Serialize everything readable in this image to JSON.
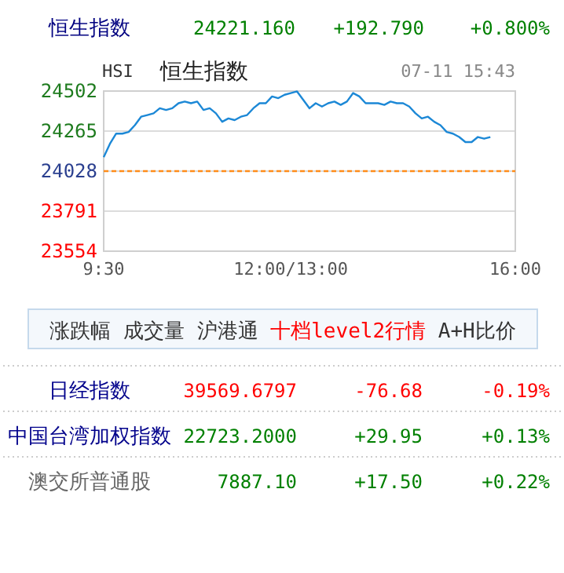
{
  "chart_data": [
    {
      "type": "other",
      "annotations": [
        "恒生指数",
        "24221.160",
        "+192.790",
        "+0.800%"
      ]
    },
    {
      "type": "line",
      "title": "恒生指数",
      "subtitle": "HSI",
      "annotations": [
        "07-11 15:43"
      ],
      "categories": [
        "9:30",
        null,
        null,
        null,
        null,
        null,
        null,
        null,
        null,
        null,
        null,
        null,
        null,
        null,
        null,
        null,
        null,
        null,
        null,
        null,
        null,
        null,
        null,
        null,
        null,
        null,
        null,
        null,
        null,
        null,
        "12:00/13:00",
        null,
        null,
        null,
        null,
        null,
        null,
        null,
        null,
        null,
        null,
        null,
        null,
        null,
        null,
        null,
        null,
        null,
        null,
        null,
        null,
        null,
        null,
        null,
        null,
        null,
        null,
        null,
        null,
        null,
        null,
        null,
        null,
        null,
        null,
        null,
        "16:00"
      ],
      "series": [
        {
          "color": "#1c88d6",
          "values": [
            24110,
            24190,
            24250,
            24250,
            24260,
            24300,
            24350,
            24360,
            24370,
            24400,
            24390,
            24400,
            24430,
            24440,
            24430,
            24440,
            24390,
            24400,
            24370,
            24320,
            24340,
            24330,
            24350,
            24360,
            24400,
            24430,
            24430,
            24470,
            24460,
            24480,
            24490,
            24500,
            24450,
            24400,
            24430,
            24410,
            24430,
            24440,
            24420,
            24440,
            24490,
            24470,
            24430,
            24430,
            24430,
            24420,
            24440,
            24430,
            24430,
            24410,
            24370,
            24340,
            24350,
            24320,
            24300,
            24260,
            24250,
            24230,
            24200,
            24200,
            24230,
            24220,
            24230,
            null,
            null,
            null,
            null
          ]
        }
      ],
      "ylim": [
        23554,
        24502
      ],
      "yticks": [
        23554,
        23791,
        24028,
        24265,
        24502
      ],
      "grid": "y",
      "ref_lines": [
        {
          "axis": "y",
          "value": 24028,
          "color": "#ff8c1a",
          "line_style": "dashed"
        }
      ]
    },
    {
      "type": "other",
      "annotations": [
        "涨跌幅",
        "成交量",
        "沪港通",
        "十档level2行情",
        "A+H比价",
        "日经指数",
        "39569.6797",
        "-76.68",
        "-0.19%",
        "中国台湾加权指数",
        "22723.2000",
        "+29.95",
        "+0.13%",
        "澳交所普通股",
        "7887.10",
        "+17.50",
        "+0.22%"
      ]
    }
  ]
}
